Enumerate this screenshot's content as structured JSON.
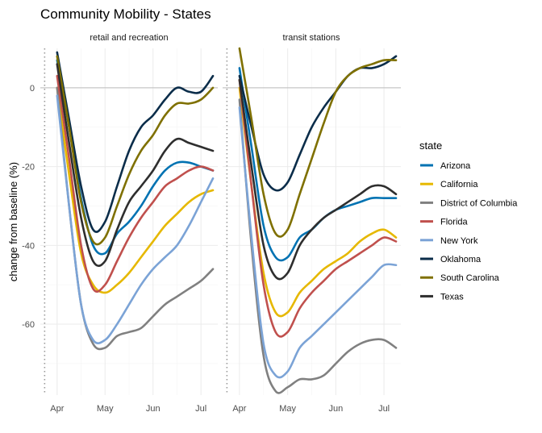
{
  "chart_data": {
    "type": "line",
    "title": "Community Mobility - States",
    "ylabel": "change from baseline (%)",
    "xlabel": "",
    "x_ticks": [
      "Apr",
      "May",
      "Jun",
      "Jul"
    ],
    "y_ticks": [
      0,
      -20,
      -40,
      -60
    ],
    "ylim": [
      -78,
      10
    ],
    "grid": true,
    "legend": {
      "title": "state",
      "position": "right"
    },
    "reference_line": {
      "y": 0
    },
    "vertical_marker": {
      "style": "dotted",
      "label": ""
    },
    "colors": {
      "Arizona": "#0072B2",
      "California": "#E6B800",
      "District of Columbia": "#808080",
      "Florida": "#C0504D",
      "New York": "#7BA3D6",
      "Oklahoma": "#0B2D4A",
      "South Carolina": "#7F7000",
      "Texas": "#2E2E2E"
    },
    "panels": [
      {
        "name": "retail and recreation",
        "series": [
          {
            "name": "Arizona",
            "values": [
              [
                0,
                7
              ],
              [
                0.25,
                -10
              ],
              [
                0.5,
                -28
              ],
              [
                0.75,
                -40
              ],
              [
                1,
                -42
              ],
              [
                1.25,
                -37
              ],
              [
                1.5,
                -34
              ],
              [
                1.75,
                -30
              ],
              [
                2,
                -25
              ],
              [
                2.25,
                -21
              ],
              [
                2.5,
                -19
              ],
              [
                2.75,
                -19
              ],
              [
                3,
                -20
              ],
              [
                3.25,
                -21
              ]
            ]
          },
          {
            "name": "California",
            "values": [
              [
                0,
                0
              ],
              [
                0.25,
                -22
              ],
              [
                0.5,
                -42
              ],
              [
                0.75,
                -50
              ],
              [
                1,
                -52
              ],
              [
                1.25,
                -50
              ],
              [
                1.5,
                -47
              ],
              [
                1.75,
                -43
              ],
              [
                2,
                -39
              ],
              [
                2.25,
                -35
              ],
              [
                2.5,
                -32
              ],
              [
                2.75,
                -29
              ],
              [
                3,
                -27
              ],
              [
                3.25,
                -26
              ]
            ]
          },
          {
            "name": "District of Columbia",
            "values": [
              [
                0,
                0
              ],
              [
                0.25,
                -30
              ],
              [
                0.5,
                -55
              ],
              [
                0.75,
                -65
              ],
              [
                1,
                -66
              ],
              [
                1.25,
                -63
              ],
              [
                1.5,
                -62
              ],
              [
                1.75,
                -61
              ],
              [
                2,
                -58
              ],
              [
                2.25,
                -55
              ],
              [
                2.5,
                -53
              ],
              [
                2.75,
                -51
              ],
              [
                3,
                -49
              ],
              [
                3.25,
                -46
              ]
            ]
          },
          {
            "name": "Florida",
            "values": [
              [
                0,
                3
              ],
              [
                0.25,
                -18
              ],
              [
                0.5,
                -40
              ],
              [
                0.75,
                -51
              ],
              [
                1,
                -50
              ],
              [
                1.25,
                -44
              ],
              [
                1.5,
                -38
              ],
              [
                1.75,
                -33
              ],
              [
                2,
                -29
              ],
              [
                2.25,
                -25
              ],
              [
                2.5,
                -23
              ],
              [
                2.75,
                -21
              ],
              [
                3,
                -20
              ],
              [
                3.25,
                -21
              ]
            ]
          },
          {
            "name": "New York",
            "values": [
              [
                0,
                -2
              ],
              [
                0.25,
                -30
              ],
              [
                0.5,
                -55
              ],
              [
                0.75,
                -64
              ],
              [
                1,
                -64
              ],
              [
                1.25,
                -60
              ],
              [
                1.5,
                -55
              ],
              [
                1.75,
                -50
              ],
              [
                2,
                -46
              ],
              [
                2.25,
                -43
              ],
              [
                2.5,
                -40
              ],
              [
                2.75,
                -35
              ],
              [
                3,
                -29
              ],
              [
                3.25,
                -23
              ]
            ]
          },
          {
            "name": "Oklahoma",
            "values": [
              [
                0,
                9
              ],
              [
                0.25,
                -8
              ],
              [
                0.5,
                -25
              ],
              [
                0.75,
                -36
              ],
              [
                1,
                -34
              ],
              [
                1.25,
                -25
              ],
              [
                1.5,
                -16
              ],
              [
                1.75,
                -10
              ],
              [
                2,
                -7
              ],
              [
                2.25,
                -3
              ],
              [
                2.5,
                0
              ],
              [
                2.75,
                -1
              ],
              [
                3,
                -1
              ],
              [
                3.25,
                3
              ]
            ]
          },
          {
            "name": "South Carolina",
            "values": [
              [
                0,
                8
              ],
              [
                0.25,
                -10
              ],
              [
                0.5,
                -29
              ],
              [
                0.75,
                -39
              ],
              [
                1,
                -38
              ],
              [
                1.25,
                -30
              ],
              [
                1.5,
                -22
              ],
              [
                1.75,
                -16
              ],
              [
                2,
                -12
              ],
              [
                2.25,
                -7
              ],
              [
                2.5,
                -4
              ],
              [
                2.75,
                -4
              ],
              [
                3,
                -3
              ],
              [
                3.25,
                0
              ]
            ]
          },
          {
            "name": "Texas",
            "values": [
              [
                0,
                6
              ],
              [
                0.25,
                -14
              ],
              [
                0.5,
                -33
              ],
              [
                0.75,
                -44
              ],
              [
                1,
                -44
              ],
              [
                1.25,
                -36
              ],
              [
                1.5,
                -29
              ],
              [
                1.75,
                -25
              ],
              [
                2,
                -21
              ],
              [
                2.25,
                -16
              ],
              [
                2.5,
                -13
              ],
              [
                2.75,
                -14
              ],
              [
                3,
                -15
              ],
              [
                3.25,
                -16
              ]
            ]
          }
        ]
      },
      {
        "name": "transit stations",
        "series": [
          {
            "name": "Arizona",
            "values": [
              [
                0,
                5
              ],
              [
                0.25,
                -15
              ],
              [
                0.5,
                -35
              ],
              [
                0.75,
                -43
              ],
              [
                1,
                -43
              ],
              [
                1.25,
                -38
              ],
              [
                1.5,
                -36
              ],
              [
                1.75,
                -33
              ],
              [
                2,
                -31
              ],
              [
                2.25,
                -30
              ],
              [
                2.5,
                -29
              ],
              [
                2.75,
                -28
              ],
              [
                3,
                -28
              ],
              [
                3.25,
                -28
              ]
            ]
          },
          {
            "name": "California",
            "values": [
              [
                0,
                0
              ],
              [
                0.25,
                -25
              ],
              [
                0.5,
                -47
              ],
              [
                0.75,
                -57
              ],
              [
                1,
                -57
              ],
              [
                1.25,
                -52
              ],
              [
                1.5,
                -49
              ],
              [
                1.75,
                -46
              ],
              [
                2,
                -44
              ],
              [
                2.25,
                -42
              ],
              [
                2.5,
                -39
              ],
              [
                2.75,
                -37
              ],
              [
                3,
                -36
              ],
              [
                3.25,
                -38
              ]
            ]
          },
          {
            "name": "District of Columbia",
            "values": [
              [
                0,
                -3
              ],
              [
                0.25,
                -40
              ],
              [
                0.5,
                -68
              ],
              [
                0.75,
                -77
              ],
              [
                1,
                -76
              ],
              [
                1.25,
                -74
              ],
              [
                1.5,
                -74
              ],
              [
                1.75,
                -73
              ],
              [
                2,
                -70
              ],
              [
                2.25,
                -67
              ],
              [
                2.5,
                -65
              ],
              [
                2.75,
                -64
              ],
              [
                3,
                -64
              ],
              [
                3.25,
                -66
              ]
            ]
          },
          {
            "name": "Florida",
            "values": [
              [
                0,
                2
              ],
              [
                0.25,
                -25
              ],
              [
                0.5,
                -50
              ],
              [
                0.75,
                -62
              ],
              [
                1,
                -62
              ],
              [
                1.25,
                -56
              ],
              [
                1.5,
                -52
              ],
              [
                1.75,
                -49
              ],
              [
                2,
                -46
              ],
              [
                2.25,
                -44
              ],
              [
                2.5,
                -42
              ],
              [
                2.75,
                -40
              ],
              [
                3,
                -38
              ],
              [
                3.25,
                -39
              ]
            ]
          },
          {
            "name": "New York",
            "values": [
              [
                0,
                -5
              ],
              [
                0.25,
                -38
              ],
              [
                0.5,
                -65
              ],
              [
                0.75,
                -73
              ],
              [
                1,
                -72
              ],
              [
                1.25,
                -66
              ],
              [
                1.5,
                -63
              ],
              [
                1.75,
                -60
              ],
              [
                2,
                -57
              ],
              [
                2.25,
                -54
              ],
              [
                2.5,
                -51
              ],
              [
                2.75,
                -48
              ],
              [
                3,
                -45
              ],
              [
                3.25,
                -45
              ]
            ]
          },
          {
            "name": "Oklahoma",
            "values": [
              [
                0,
                3
              ],
              [
                0.25,
                -10
              ],
              [
                0.5,
                -22
              ],
              [
                0.75,
                -26
              ],
              [
                1,
                -24
              ],
              [
                1.25,
                -17
              ],
              [
                1.5,
                -10
              ],
              [
                1.75,
                -5
              ],
              [
                2,
                -1
              ],
              [
                2.25,
                3
              ],
              [
                2.5,
                5
              ],
              [
                2.75,
                5
              ],
              [
                3,
                6
              ],
              [
                3.25,
                8
              ]
            ]
          },
          {
            "name": "South Carolina",
            "values": [
              [
                0,
                10
              ],
              [
                0.25,
                -8
              ],
              [
                0.5,
                -27
              ],
              [
                0.75,
                -37
              ],
              [
                1,
                -36
              ],
              [
                1.25,
                -27
              ],
              [
                1.5,
                -18
              ],
              [
                1.75,
                -9
              ],
              [
                2,
                -1
              ],
              [
                2.25,
                3
              ],
              [
                2.5,
                5
              ],
              [
                2.75,
                6
              ],
              [
                3,
                7
              ],
              [
                3.25,
                7
              ]
            ]
          },
          {
            "name": "Texas",
            "values": [
              [
                0,
                2
              ],
              [
                0.25,
                -20
              ],
              [
                0.5,
                -40
              ],
              [
                0.75,
                -48
              ],
              [
                1,
                -47
              ],
              [
                1.25,
                -40
              ],
              [
                1.5,
                -36
              ],
              [
                1.75,
                -33
              ],
              [
                2,
                -31
              ],
              [
                2.25,
                -29
              ],
              [
                2.5,
                -27
              ],
              [
                2.75,
                -25
              ],
              [
                3,
                -25
              ],
              [
                3.25,
                -27
              ]
            ]
          }
        ]
      }
    ]
  }
}
